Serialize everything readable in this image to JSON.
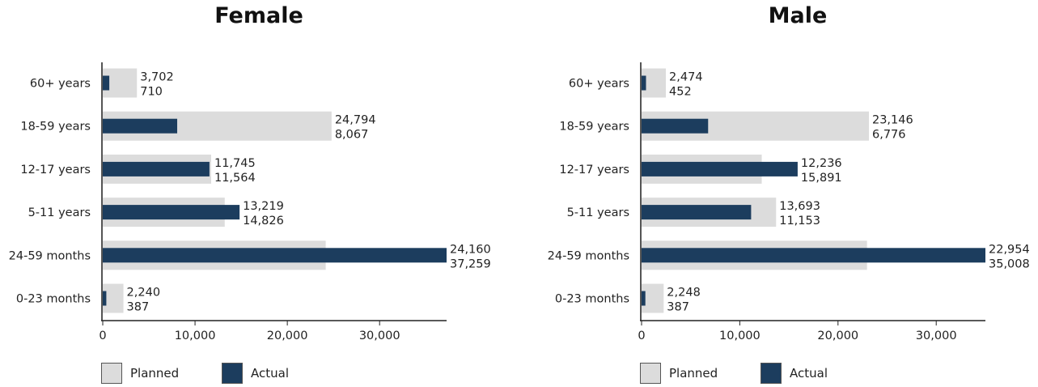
{
  "colors": {
    "planned": "#dcdcdc",
    "actual": "#1c3d5e",
    "axis": "#555555"
  },
  "legend": {
    "planned": "Planned",
    "actual": "Actual"
  },
  "chart_data": [
    {
      "type": "bar",
      "title": "Female",
      "categories": [
        "60+ years",
        "18-59 years",
        "12-17 years",
        "5-11 years",
        "24-59 months",
        "0-23 months"
      ],
      "series": [
        {
          "name": "Planned",
          "values": [
            3702,
            24794,
            11745,
            13219,
            24160,
            2240
          ],
          "labels": [
            "3,702",
            "24,794",
            "11,745",
            "13,219",
            "24,160",
            "2,240"
          ]
        },
        {
          "name": "Actual",
          "values": [
            710,
            8067,
            11564,
            14826,
            37259,
            387
          ],
          "labels": [
            "710",
            "8,067",
            "11,564",
            "14,826",
            "37,259",
            "387"
          ]
        }
      ],
      "xlim": [
        0,
        37259
      ],
      "xticks": [
        0,
        10000,
        20000,
        30000
      ],
      "xtick_labels": [
        "0",
        "10,000",
        "20,000",
        "30,000"
      ],
      "legend_position": "bottom-left"
    },
    {
      "type": "bar",
      "title": "Male",
      "categories": [
        "60+ years",
        "18-59 years",
        "12-17 years",
        "5-11 years",
        "24-59 months",
        "0-23 months"
      ],
      "series": [
        {
          "name": "Planned",
          "values": [
            2474,
            23146,
            12236,
            13693,
            22954,
            2248
          ],
          "labels": [
            "2,474",
            "23,146",
            "12,236",
            "13,693",
            "22,954",
            "2,248"
          ]
        },
        {
          "name": "Actual",
          "values": [
            452,
            6776,
            15891,
            11153,
            35008,
            387
          ],
          "labels": [
            "452",
            "6,776",
            "15,891",
            "11,153",
            "35,008",
            "387"
          ]
        }
      ],
      "xlim": [
        0,
        35008
      ],
      "xticks": [
        0,
        10000,
        20000,
        30000
      ],
      "xtick_labels": [
        "0",
        "10,000",
        "20,000",
        "30,000"
      ],
      "legend_position": "bottom-left"
    }
  ]
}
